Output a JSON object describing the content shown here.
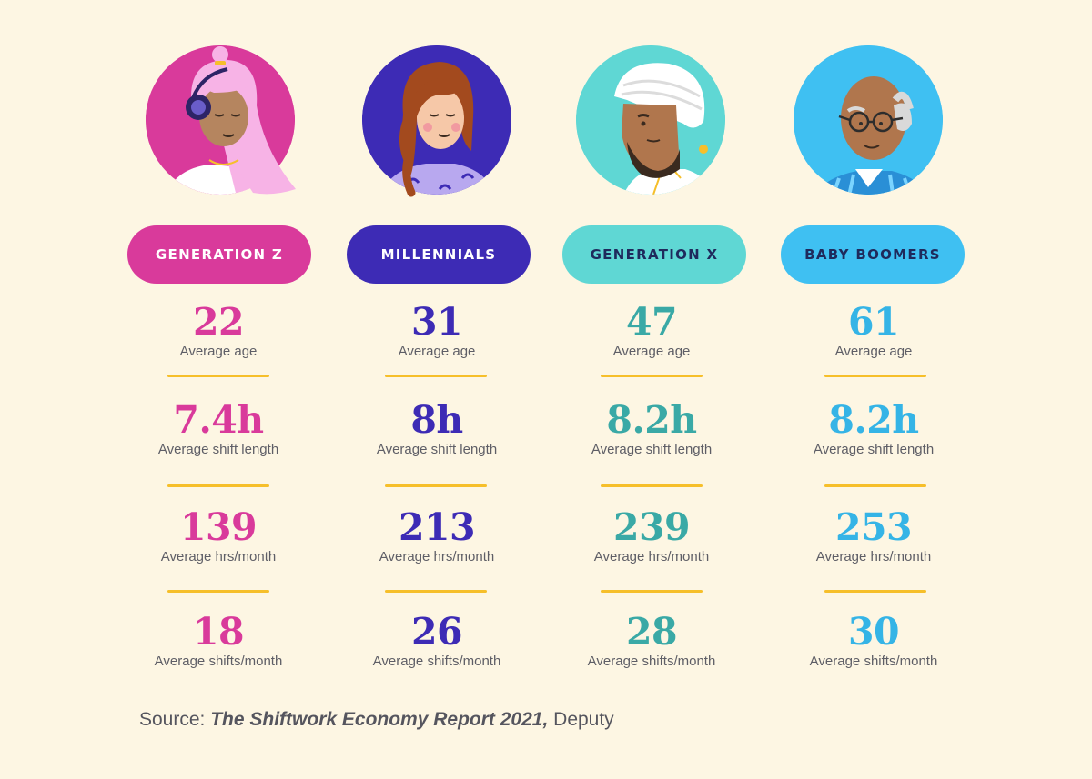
{
  "generations": [
    {
      "name": "GENERATION Z",
      "color": "#d93a9b",
      "pill_text_color": "#ffffff",
      "avatar_icon": "generation-z-avatar-icon",
      "stats": [
        {
          "value": "22",
          "label": "Average age"
        },
        {
          "value": "7.4h",
          "label": "Average shift length"
        },
        {
          "value": "139",
          "label": "Average hrs/month"
        },
        {
          "value": "18",
          "label": "Average shifts/month"
        }
      ]
    },
    {
      "name": "MILLENNIALS",
      "color": "#3d2bb5",
      "pill_text_color": "#ffffff",
      "avatar_icon": "millennial-avatar-icon",
      "stats": [
        {
          "value": "31",
          "label": "Average age"
        },
        {
          "value": "8h",
          "label": "Average shift length"
        },
        {
          "value": "213",
          "label": "Average hrs/month"
        },
        {
          "value": "26",
          "label": "Average shifts/month"
        }
      ]
    },
    {
      "name": "GENERATION X",
      "color": "#5fd7d4",
      "pill_text_color": "#1f2a5c",
      "number_color": "#3aa9a6",
      "avatar_icon": "generation-x-avatar-icon",
      "stats": [
        {
          "value": "47",
          "label": "Average age"
        },
        {
          "value": "8.2h",
          "label": "Average shift length"
        },
        {
          "value": "239",
          "label": "Average hrs/month"
        },
        {
          "value": "28",
          "label": "Average shifts/month"
        }
      ]
    },
    {
      "name": "BABY BOOMERS",
      "color": "#3fc0f2",
      "pill_text_color": "#1f2a5c",
      "number_color": "#35b4e6",
      "avatar_icon": "baby-boomer-avatar-icon",
      "stats": [
        {
          "value": "61",
          "label": "Average age"
        },
        {
          "value": "8.2h",
          "label": "Average shift length"
        },
        {
          "value": "253",
          "label": "Average hrs/month"
        },
        {
          "value": "30",
          "label": "Average shifts/month"
        }
      ]
    }
  ],
  "source": {
    "prefix": "Source: ",
    "title": "The Shiftwork Economy Report 2021,",
    "suffix": " Deputy"
  },
  "colors": {
    "background": "#fdf6e3",
    "separator": "#f6bf2a",
    "label": "#5e5e66"
  }
}
